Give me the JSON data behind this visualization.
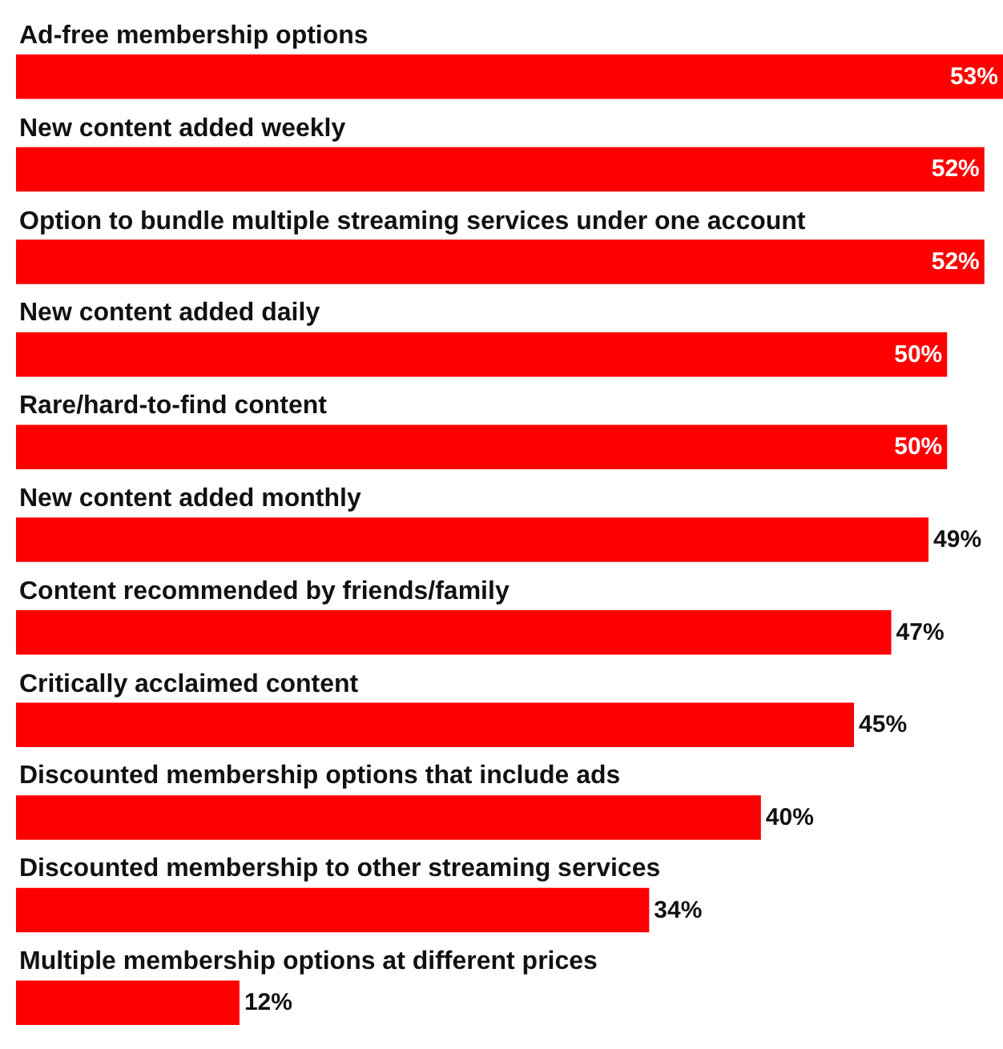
{
  "chart_data": {
    "type": "bar",
    "orientation": "horizontal",
    "categories": [
      "Ad-free membership options",
      "New content added weekly",
      "Option to bundle multiple streaming services under one account",
      "New content added daily",
      "Rare/hard-to-find content",
      "New content added monthly",
      "Content recommended by friends/family",
      "Critically acclaimed content",
      "Discounted membership options that include ads",
      "Discounted membership to other streaming services",
      "Multiple membership options at different prices"
    ],
    "values": [
      53,
      52,
      52,
      50,
      50,
      49,
      47,
      45,
      40,
      34,
      12
    ],
    "value_labels": [
      "53%",
      "52%",
      "52%",
      "50%",
      "50%",
      "49%",
      "47%",
      "45%",
      "40%",
      "34%",
      "12%"
    ],
    "color": "#ff0000"
  }
}
